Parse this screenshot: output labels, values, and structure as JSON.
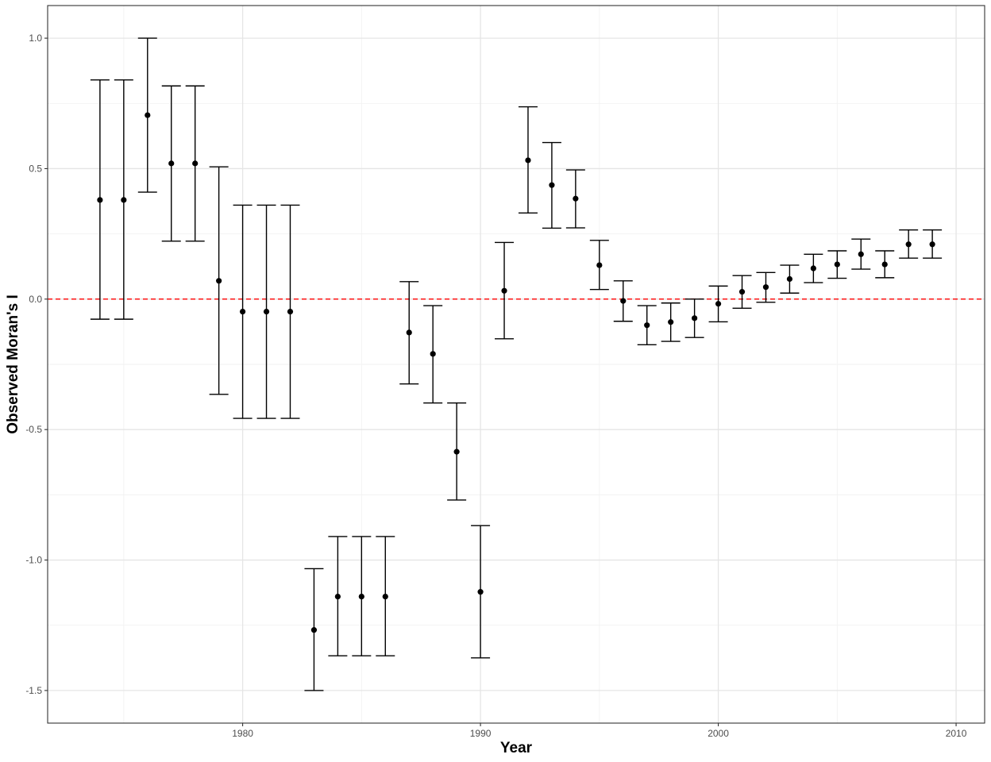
{
  "chart_data": {
    "type": "scatter",
    "title": "",
    "xlabel": "Year",
    "ylabel": "Observed Moran's I",
    "xlim": [
      1971.8,
      2011.2
    ],
    "ylim": [
      -1.625,
      1.125
    ],
    "x_ticks": [
      1980,
      1990,
      2000,
      2010
    ],
    "x_tick_labels": [
      "1980",
      "1990",
      "2000",
      "2010"
    ],
    "y_ticks": [
      -1.5,
      -1.0,
      -0.5,
      0.0,
      0.5,
      1.0
    ],
    "y_tick_labels": [
      "-1.5",
      "-1.0",
      "-0.5",
      "0.0",
      "0.5",
      "1.0"
    ],
    "grid": true,
    "reference_line": {
      "y": 0,
      "style": "dashed",
      "color": "#ff0000"
    },
    "colors": {
      "points": "#000000",
      "error_bars": "#000000",
      "grid_major": "#e5e5e5",
      "grid_minor": "#f2f2f2",
      "panel_border": "#333333"
    },
    "series": [
      {
        "x": [
          1974,
          1975,
          1976,
          1977,
          1978,
          1979,
          1980,
          1981,
          1982,
          1983,
          1984,
          1985,
          1986,
          1987,
          1988,
          1989,
          1990,
          1991,
          1992,
          1993,
          1994,
          1995,
          1996,
          1997,
          1998,
          1999,
          2000,
          2001,
          2002,
          2003,
          2004,
          2005,
          2006,
          2007,
          2008,
          2009
        ],
        "y": [
          0.38,
          0.38,
          0.705,
          0.52,
          0.52,
          0.07,
          -0.048,
          -0.048,
          -0.048,
          -1.268,
          -1.14,
          -1.14,
          -1.14,
          -0.128,
          -0.21,
          -0.585,
          -1.122,
          0.032,
          0.532,
          0.437,
          0.385,
          0.13,
          -0.007,
          -0.1,
          -0.088,
          -0.073,
          -0.018,
          0.028,
          0.046,
          0.077,
          0.118,
          0.133,
          0.172,
          0.133,
          0.21,
          0.21
        ],
        "lower": [
          -0.077,
          -0.077,
          0.41,
          0.222,
          0.222,
          -0.365,
          -0.457,
          -0.457,
          -0.457,
          -1.5,
          -1.367,
          -1.367,
          -1.367,
          -0.325,
          -0.398,
          -0.77,
          -1.375,
          -0.152,
          0.33,
          0.272,
          0.273,
          0.037,
          -0.085,
          -0.175,
          -0.162,
          -0.147,
          -0.087,
          -0.035,
          -0.012,
          0.023,
          0.063,
          0.08,
          0.115,
          0.082,
          0.157,
          0.157
        ],
        "upper": [
          0.84,
          0.84,
          1.0,
          0.817,
          0.817,
          0.507,
          0.36,
          0.36,
          0.36,
          -1.033,
          -0.91,
          -0.91,
          -0.91,
          0.067,
          -0.025,
          -0.398,
          -0.868,
          0.217,
          0.737,
          0.6,
          0.495,
          0.225,
          0.07,
          -0.025,
          -0.015,
          0.0,
          0.05,
          0.09,
          0.102,
          0.13,
          0.172,
          0.185,
          0.23,
          0.185,
          0.265,
          0.265
        ]
      }
    ]
  }
}
